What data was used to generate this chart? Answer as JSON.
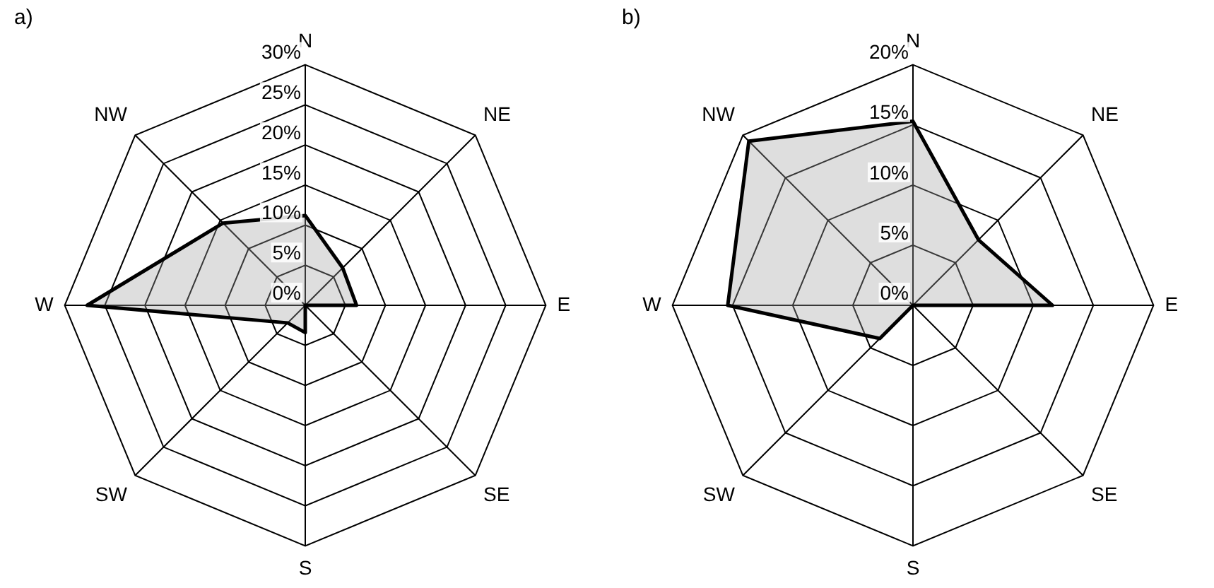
{
  "chart_data": [
    {
      "type": "radar",
      "title": "a)",
      "categories": [
        "N",
        "NE",
        "E",
        "SE",
        "S",
        "SW",
        "W",
        "NW"
      ],
      "series": [
        {
          "color": "#000000",
          "values": [
            11.2,
            6.6,
            6.4,
            0,
            3.4,
            3.1,
            27.2,
            14.5
          ]
        }
      ],
      "ylim": [
        0,
        30
      ],
      "yticks": [
        {
          "value": 0,
          "label": "0%"
        },
        {
          "value": 5,
          "label": "5%"
        },
        {
          "value": 10,
          "label": "10%"
        },
        {
          "value": 15,
          "label": "15%"
        },
        {
          "value": 20,
          "label": "20%"
        },
        {
          "value": 25,
          "label": "25%"
        },
        {
          "value": 30,
          "label": "30%"
        }
      ],
      "grid": true,
      "legend": false,
      "marker": "none"
    },
    {
      "type": "radar",
      "title": "b)",
      "categories": [
        "N",
        "NE",
        "E",
        "SE",
        "S",
        "SW",
        "W",
        "NW"
      ],
      "series": [
        {
          "color": "#000000",
          "values": [
            15.3,
            7.7,
            11.6,
            0,
            0,
            3.9,
            15.4,
            19.3
          ]
        }
      ],
      "ylim": [
        0,
        20
      ],
      "yticks": [
        {
          "value": 0,
          "label": "0%"
        },
        {
          "value": 5,
          "label": "5%"
        },
        {
          "value": 10,
          "label": "10%"
        },
        {
          "value": 15,
          "label": "15%"
        },
        {
          "value": 20,
          "label": "20%"
        }
      ],
      "grid": true,
      "legend": false,
      "marker": "none"
    }
  ]
}
